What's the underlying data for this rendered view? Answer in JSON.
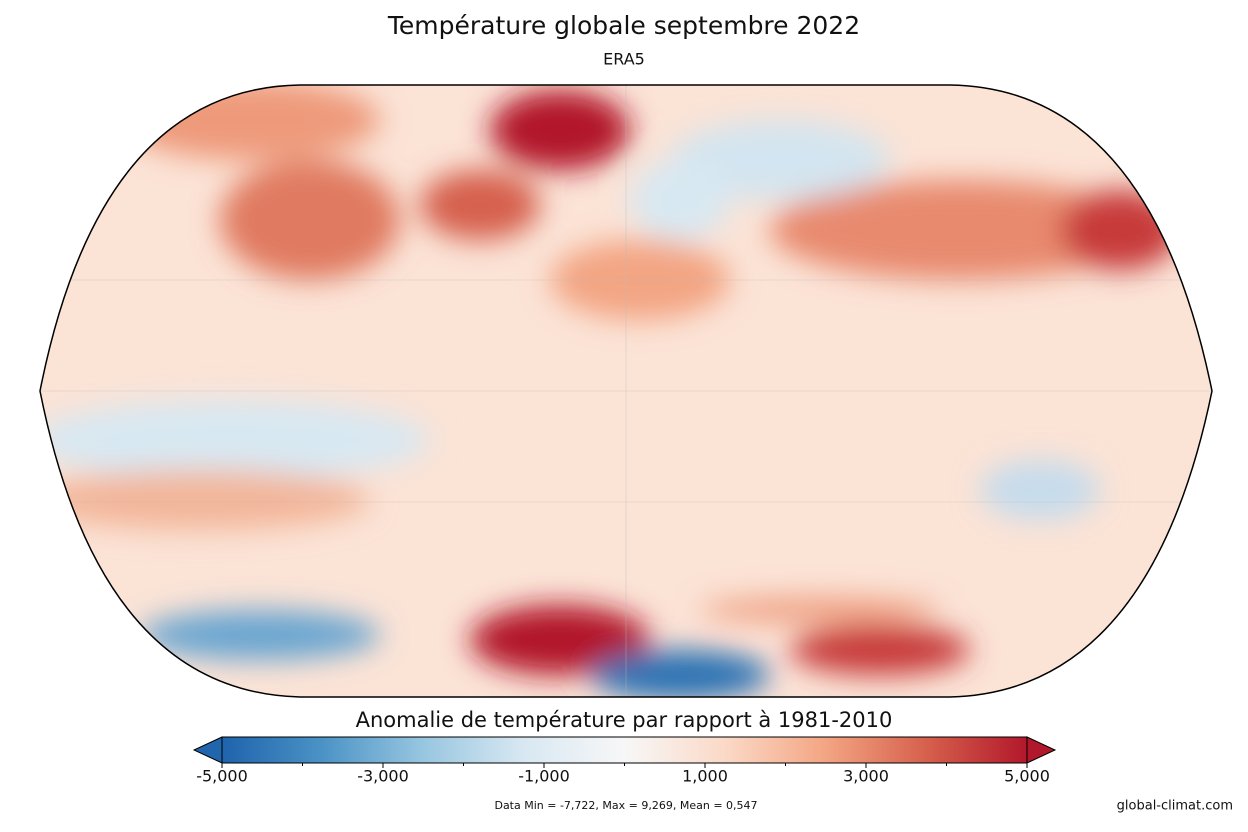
{
  "map": {
    "title": "Température globale septembre 2022",
    "subtitle": "ERA5",
    "colorbar": {
      "label": "Anomalie de température par rapport à 1981-2010",
      "lim": [
        -5,
        5
      ],
      "colors": [
        "#1f63ac",
        "#4b93c6",
        "#98c6e0",
        "#d8e8f2",
        "#f7f7f7",
        "#fbd9c7",
        "#f3a583",
        "#d6604d",
        "#b2182b"
      ],
      "under_color": "#2166ac",
      "over_color": "#b2182b",
      "ticks": [
        {
          "value": -5,
          "label": "-5,000"
        },
        {
          "value": -3,
          "label": "-3,000"
        },
        {
          "value": -1,
          "label": "-1,000"
        },
        {
          "value": 1,
          "label": "1,000"
        },
        {
          "value": 3,
          "label": "3,000"
        },
        {
          "value": 5,
          "label": "5,000"
        }
      ],
      "minor_ticks": [
        -4,
        -2,
        0,
        2,
        4
      ]
    },
    "stats": "Data Min = -7,722, Max = 9,269, Mean = 0,547",
    "credit": "global-climat.com"
  }
}
